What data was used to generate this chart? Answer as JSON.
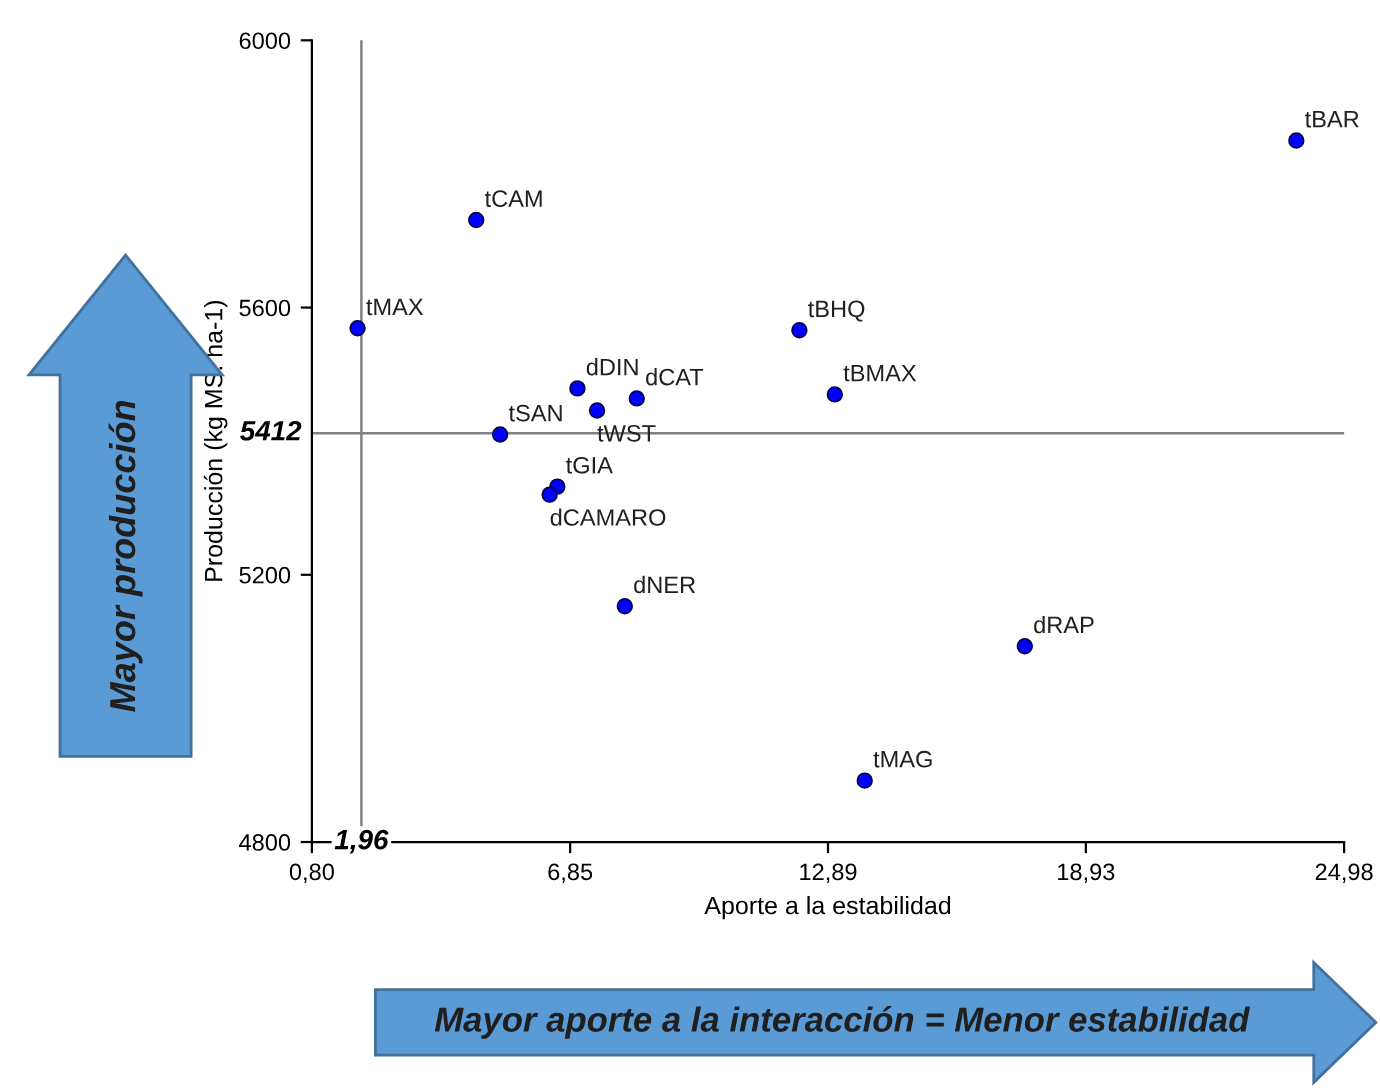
{
  "chart_data": {
    "type": "scatter",
    "xlabel": "Aporte a la estabilidad",
    "ylabel": "Producción (kg MS. ha-1)",
    "xlim": [
      0.8,
      24.98
    ],
    "xticks": [
      {
        "value": 0.8,
        "label": "0,80"
      },
      {
        "value": 6.85,
        "label": "6,85"
      },
      {
        "value": 12.89,
        "label": "12,89"
      },
      {
        "value": 18.93,
        "label": "18,93"
      },
      {
        "value": 24.98,
        "label": "24,98"
      }
    ],
    "ylim": [
      4800,
      6000
    ],
    "yticks": [
      4800,
      5200,
      5600,
      6000
    ],
    "grid": false,
    "legend": false,
    "marker": "circle",
    "ref_lines": [
      {
        "axis": "x",
        "value": 1.96,
        "label": "1,96",
        "color": "#808080"
      },
      {
        "axis": "y",
        "value": 5412,
        "label": "5412",
        "color": "#808080"
      }
    ],
    "series": [
      {
        "name": "tBAR",
        "color": "#0000ff",
        "x": [
          23.86
        ],
        "values": [
          5850
        ]
      },
      {
        "name": "tCAM",
        "color": "#0000ff",
        "x": [
          4.65
        ],
        "values": [
          5731
        ]
      },
      {
        "name": "tMAX",
        "color": "#0000ff",
        "x": [
          1.87
        ],
        "values": [
          5569
        ]
      },
      {
        "name": "tBHQ",
        "color": "#0000ff",
        "x": [
          12.22
        ],
        "values": [
          5566
        ]
      },
      {
        "name": "tBMAX",
        "color": "#0000ff",
        "x": [
          13.05
        ],
        "values": [
          5470
        ]
      },
      {
        "name": "dDIN",
        "color": "#0000ff",
        "x": [
          7.02
        ],
        "values": [
          5479
        ]
      },
      {
        "name": "dCAT",
        "color": "#0000ff",
        "x": [
          8.41
        ],
        "values": [
          5464
        ]
      },
      {
        "name": "tWST",
        "color": "#0000ff",
        "x": [
          7.48
        ],
        "values": [
          5446
        ]
      },
      {
        "name": "tSAN",
        "color": "#0000ff",
        "x": [
          5.21
        ],
        "values": [
          5410
        ]
      },
      {
        "name": "tGIA",
        "color": "#0000ff",
        "x": [
          6.55
        ],
        "values": [
          5332
        ]
      },
      {
        "name": "dCAMARO",
        "color": "#0000ff",
        "x": [
          6.37
        ],
        "values": [
          5320
        ]
      },
      {
        "name": "dNER",
        "color": "#0000ff",
        "x": [
          8.13
        ],
        "values": [
          5153
        ]
      },
      {
        "name": "dRAP",
        "color": "#0000ff",
        "x": [
          17.5
        ],
        "values": [
          5093
        ]
      },
      {
        "name": "tMAG",
        "color": "#0000ff",
        "x": [
          13.75
        ],
        "values": [
          4892
        ]
      }
    ],
    "annotations": [
      "Mayor producción",
      "Mayor aporte a la interacción = Menor estabilidad"
    ]
  }
}
